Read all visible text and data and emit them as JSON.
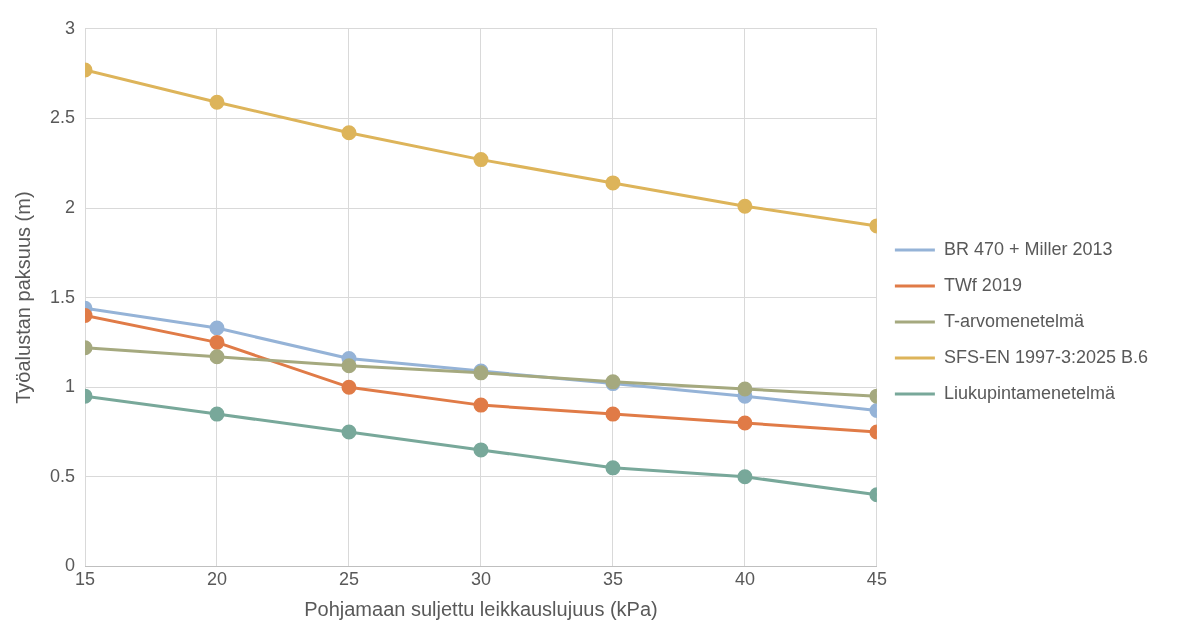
{
  "chart_data": {
    "type": "line",
    "xlabel": "Pohjamaan suljettu leikkauslujuus (kPa)",
    "ylabel": "Työalustan paksuus (m)",
    "x": [
      15,
      20,
      25,
      30,
      35,
      40,
      45
    ],
    "series": [
      {
        "name": "BR 470 + Miller 2013",
        "color": "#95b3d7",
        "values": [
          1.44,
          1.33,
          1.16,
          1.09,
          1.02,
          0.95,
          0.87
        ]
      },
      {
        "name": "TWf 2019",
        "color": "#e07b47",
        "values": [
          1.4,
          1.25,
          1.0,
          0.9,
          0.85,
          0.8,
          0.75
        ]
      },
      {
        "name": "T-arvomenetelmä",
        "color": "#a5a97f",
        "values": [
          1.22,
          1.17,
          1.12,
          1.08,
          1.03,
          0.99,
          0.95
        ]
      },
      {
        "name": "SFS-EN 1997-3:2025 B.6",
        "color": "#ddb45a",
        "values": [
          2.77,
          2.59,
          2.42,
          2.27,
          2.14,
          2.01,
          1.9
        ]
      },
      {
        "name": "Liukupintamenetelmä",
        "color": "#78a89a",
        "values": [
          0.95,
          0.85,
          0.75,
          0.65,
          0.55,
          0.5,
          0.4
        ]
      }
    ],
    "xlim": [
      15,
      45
    ],
    "xticks": [
      15,
      20,
      25,
      30,
      35,
      40,
      45
    ],
    "ylim": [
      0,
      3
    ],
    "yticks": [
      0,
      0.5,
      1,
      1.5,
      2,
      2.5,
      3
    ],
    "grid": true,
    "legend": "right",
    "marker": "circle",
    "line_style": "solid"
  }
}
